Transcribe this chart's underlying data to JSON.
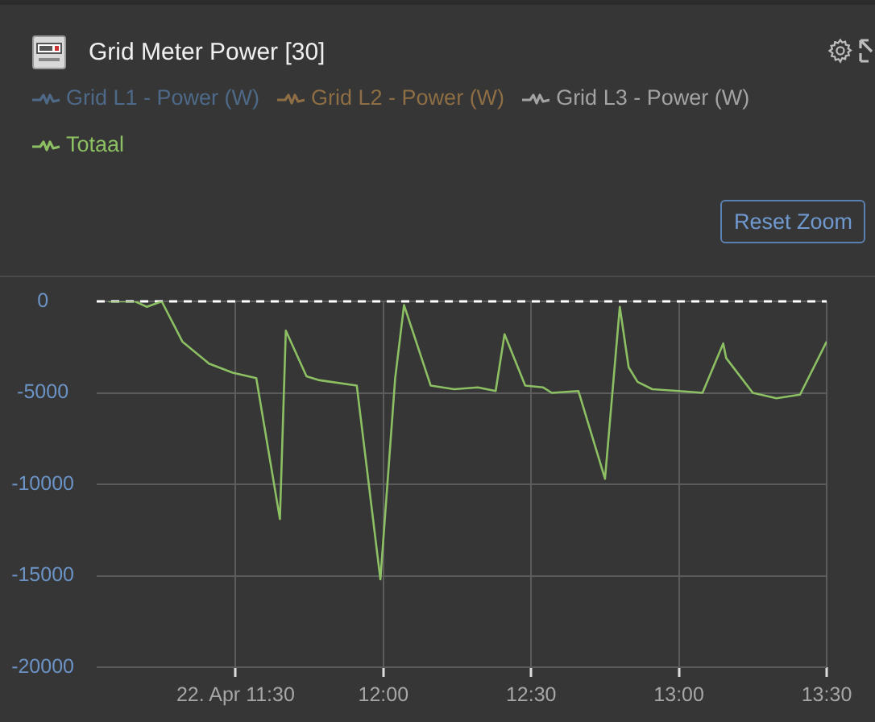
{
  "chart_data": {
    "type": "line",
    "title": "Grid Meter Power [30]",
    "x": [
      11.07,
      11.16,
      11.2,
      11.25,
      11.32,
      11.41,
      11.49,
      11.57,
      11.65,
      11.67,
      11.74,
      11.78,
      11.91,
      11.99,
      12.04,
      12.07,
      12.16,
      12.24,
      12.32,
      12.38,
      12.41,
      12.48,
      12.54,
      12.57,
      12.66,
      12.75,
      12.8,
      12.83,
      12.86,
      12.91,
      13.0,
      13.08,
      13.15,
      13.16,
      13.25,
      13.33,
      13.41,
      13.5
    ],
    "series": [
      {
        "name": "Grid L1 - Power (W)",
        "color": "#4e6a88",
        "values": [
          null,
          null,
          null,
          null,
          null,
          null,
          null,
          null,
          null,
          null,
          null,
          null,
          null,
          null,
          null,
          null,
          null,
          null,
          null,
          null,
          null,
          null,
          null,
          null,
          null,
          null,
          null,
          null,
          null,
          null,
          null,
          null,
          null,
          null,
          null,
          null,
          null,
          null
        ]
      },
      {
        "name": "Grid L2 - Power (W)",
        "color": "#8e6e44",
        "values": [
          null,
          null,
          null,
          null,
          null,
          null,
          null,
          null,
          null,
          null,
          null,
          null,
          null,
          null,
          null,
          null,
          null,
          null,
          null,
          null,
          null,
          null,
          null,
          null,
          null,
          null,
          null,
          null,
          null,
          null,
          null,
          null,
          null,
          null,
          null,
          null,
          null,
          null
        ]
      },
      {
        "name": "Grid L3 - Power (W)",
        "color": "#a3a3a3",
        "values": [
          null,
          null,
          null,
          null,
          null,
          null,
          null,
          null,
          null,
          null,
          null,
          null,
          null,
          null,
          null,
          null,
          null,
          null,
          null,
          null,
          null,
          null,
          null,
          null,
          null,
          null,
          null,
          null,
          null,
          null,
          null,
          null,
          null,
          null,
          null,
          null,
          null,
          null
        ]
      },
      {
        "name": "Totaal",
        "color": "#8cc063",
        "values": [
          0,
          0,
          -300,
          0,
          -2200,
          -3400,
          -3900,
          -4200,
          -11900,
          -1600,
          -4100,
          -4300,
          -4600,
          -15200,
          -4200,
          -200,
          -4600,
          -4800,
          -4700,
          -4900,
          -1800,
          -4600,
          -4700,
          -5000,
          -4900,
          -9700,
          -300,
          -3600,
          -4400,
          -4800,
          -4900,
          -5000,
          -2300,
          -3100,
          -5000,
          -5300,
          -5100,
          -2200
        ]
      }
    ],
    "xlim": [
      11.03,
      13.5
    ],
    "xticks": [
      {
        "value": 11.5,
        "label": "22. Apr 11:30"
      },
      {
        "value": 12,
        "label": "12:00"
      },
      {
        "value": 12.5,
        "label": "12:30"
      },
      {
        "value": 13,
        "label": "13:00"
      },
      {
        "value": 13.5,
        "label": "13:30"
      }
    ],
    "ylim": [
      -20000,
      0
    ],
    "yticks": [
      0,
      -5000,
      -10000,
      -15000,
      -20000
    ],
    "ref_lines": [
      {
        "axis": "y",
        "value": 0,
        "color": "#ffffff",
        "line_style": "dashed"
      }
    ],
    "annotations": [
      "Reset Zoom"
    ],
    "grid": true,
    "legend": "top left",
    "marker": "none",
    "line_style": "solid"
  }
}
